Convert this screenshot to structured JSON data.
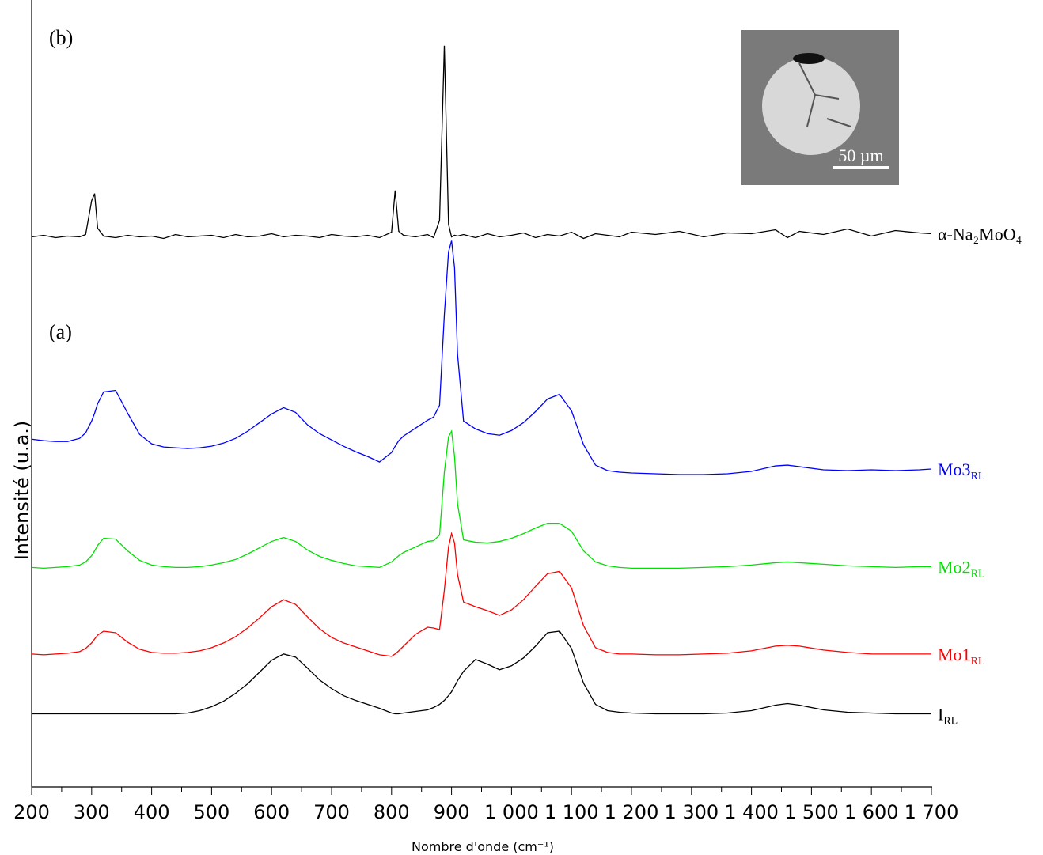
{
  "chart_data": {
    "type": "line",
    "x_label": "Nombre d'onde (cm⁻¹)",
    "y_label": "Intensité (u.a.)",
    "annotations": [
      "(b)",
      "(a)"
    ],
    "inset": {
      "scale_label": "50 µm"
    },
    "xlim": [
      200,
      1700
    ],
    "ylim": [
      0,
      100
    ],
    "xticks": [
      200,
      300,
      400,
      500,
      600,
      700,
      800,
      900,
      {
        "value": 1000,
        "label": "1 000"
      },
      {
        "value": 1100,
        "label": "1 100"
      },
      {
        "value": 1200,
        "label": "1 200"
      },
      {
        "value": 1300,
        "label": "1 300"
      },
      {
        "value": 1400,
        "label": "1 400"
      },
      {
        "value": 1500,
        "label": "1 500"
      },
      {
        "value": 1600,
        "label": "1 600"
      },
      {
        "value": 1700,
        "label": "1 700"
      }
    ],
    "x": [
      200,
      220,
      240,
      260,
      280,
      290,
      300,
      305,
      310,
      320,
      340,
      360,
      380,
      400,
      420,
      440,
      460,
      480,
      500,
      520,
      540,
      560,
      580,
      600,
      620,
      640,
      660,
      680,
      700,
      720,
      740,
      760,
      780,
      800,
      806,
      812,
      820,
      840,
      860,
      870,
      880,
      888,
      895,
      900,
      905,
      910,
      920,
      940,
      960,
      980,
      1000,
      1020,
      1040,
      1060,
      1080,
      1100,
      1120,
      1140,
      1160,
      1180,
      1200,
      1240,
      1280,
      1320,
      1360,
      1400,
      1440,
      1460,
      1480,
      1520,
      1560,
      1600,
      1640,
      1680,
      1700
    ],
    "series": [
      {
        "name": "α-Na₂MoO₄",
        "color": "#000000",
        "values": [
          69.9,
          70.1,
          69.8,
          70.0,
          69.9,
          70.2,
          74.5,
          75.4,
          71.0,
          70.0,
          69.8,
          70.1,
          69.9,
          70.0,
          69.7,
          70.2,
          69.9,
          70.0,
          70.1,
          69.8,
          70.2,
          69.9,
          70.0,
          70.3,
          69.9,
          70.1,
          70.0,
          69.8,
          70.2,
          70.0,
          69.9,
          70.1,
          69.8,
          70.5,
          75.8,
          70.6,
          70.1,
          69.9,
          70.2,
          69.8,
          72.0,
          94.2,
          71.5,
          69.9,
          70.1,
          70.0,
          70.2,
          69.8,
          70.3,
          69.9,
          70.1,
          70.4,
          69.8,
          70.2,
          70.0,
          70.5,
          69.7,
          70.3,
          70.1,
          69.9,
          70.5,
          70.2,
          70.6,
          69.9,
          70.4,
          70.3,
          70.8,
          69.8,
          70.6,
          70.2,
          70.9,
          70.0,
          70.7,
          70.4,
          70.3
        ]
      },
      {
        "name": "Mo3",
        "subscript": "RL",
        "color": "#0000ff",
        "values": [
          44.2,
          44.0,
          43.9,
          43.9,
          44.3,
          45.0,
          46.5,
          47.5,
          48.7,
          50.2,
          50.4,
          47.5,
          44.8,
          43.6,
          43.2,
          43.1,
          43.0,
          43.1,
          43.3,
          43.7,
          44.3,
          45.2,
          46.3,
          47.4,
          48.2,
          47.6,
          46.0,
          44.9,
          44.1,
          43.3,
          42.6,
          42.0,
          41.3,
          42.5,
          43.3,
          44.0,
          44.6,
          45.6,
          46.6,
          47.0,
          48.5,
          60.0,
          68.0,
          69.4,
          66.0,
          55.0,
          46.5,
          45.5,
          44.9,
          44.7,
          45.3,
          46.3,
          47.7,
          49.3,
          49.9,
          47.8,
          43.5,
          40.9,
          40.2,
          40.0,
          39.9,
          39.8,
          39.7,
          39.7,
          39.8,
          40.1,
          40.8,
          40.9,
          40.7,
          40.3,
          40.2,
          40.3,
          40.2,
          40.3,
          40.4
        ]
      },
      {
        "name": "Mo2",
        "subscript": "RL",
        "color": "#00e000",
        "values": [
          27.9,
          27.8,
          27.9,
          28.0,
          28.2,
          28.6,
          29.4,
          30.0,
          30.7,
          31.6,
          31.5,
          30.0,
          28.8,
          28.2,
          28.0,
          27.9,
          27.9,
          28.0,
          28.2,
          28.5,
          28.9,
          29.6,
          30.4,
          31.2,
          31.7,
          31.2,
          30.1,
          29.3,
          28.8,
          28.4,
          28.1,
          28.0,
          27.9,
          28.6,
          29.0,
          29.4,
          29.8,
          30.5,
          31.2,
          31.3,
          32.0,
          40.0,
          44.5,
          45.2,
          42.0,
          36.0,
          31.4,
          31.1,
          31.0,
          31.2,
          31.6,
          32.2,
          32.9,
          33.5,
          33.5,
          32.5,
          30.0,
          28.6,
          28.1,
          27.9,
          27.8,
          27.8,
          27.8,
          27.9,
          28.0,
          28.2,
          28.5,
          28.6,
          28.5,
          28.3,
          28.1,
          28.0,
          27.9,
          28.0,
          28.0
        ]
      },
      {
        "name": "Mo1",
        "subscript": "RL",
        "color": "#ff0000",
        "values": [
          16.9,
          16.8,
          16.9,
          17.0,
          17.2,
          17.6,
          18.3,
          18.8,
          19.3,
          19.8,
          19.6,
          18.4,
          17.5,
          17.1,
          17.0,
          17.0,
          17.1,
          17.3,
          17.7,
          18.3,
          19.1,
          20.2,
          21.5,
          22.9,
          23.8,
          23.2,
          21.6,
          20.1,
          19.0,
          18.3,
          17.8,
          17.3,
          16.8,
          16.6,
          16.9,
          17.3,
          17.9,
          19.4,
          20.3,
          20.2,
          20.0,
          25.0,
          30.5,
          32.2,
          31.0,
          27.0,
          23.5,
          22.9,
          22.4,
          21.8,
          22.5,
          23.8,
          25.5,
          27.1,
          27.4,
          25.3,
          20.5,
          17.7,
          17.1,
          16.9,
          16.9,
          16.8,
          16.8,
          16.9,
          17.0,
          17.3,
          17.9,
          18.0,
          17.9,
          17.4,
          17.1,
          16.9,
          16.9,
          16.9,
          16.9
        ]
      },
      {
        "name": "I",
        "subscript": "RL",
        "color": "#000000",
        "values": [
          9.3,
          9.3,
          9.3,
          9.3,
          9.3,
          9.3,
          9.3,
          9.3,
          9.3,
          9.3,
          9.3,
          9.3,
          9.3,
          9.3,
          9.3,
          9.3,
          9.4,
          9.7,
          10.2,
          10.9,
          11.9,
          13.1,
          14.6,
          16.1,
          16.9,
          16.5,
          15.1,
          13.6,
          12.5,
          11.6,
          11.0,
          10.5,
          10.0,
          9.4,
          9.3,
          9.3,
          9.4,
          9.6,
          9.8,
          10.1,
          10.5,
          11.0,
          11.6,
          12.1,
          12.8,
          13.5,
          14.7,
          16.2,
          15.6,
          14.9,
          15.4,
          16.4,
          17.9,
          19.6,
          19.8,
          17.6,
          13.2,
          10.5,
          9.7,
          9.5,
          9.4,
          9.3,
          9.3,
          9.3,
          9.4,
          9.7,
          10.4,
          10.6,
          10.4,
          9.8,
          9.5,
          9.4,
          9.3,
          9.3,
          9.3
        ]
      }
    ]
  }
}
